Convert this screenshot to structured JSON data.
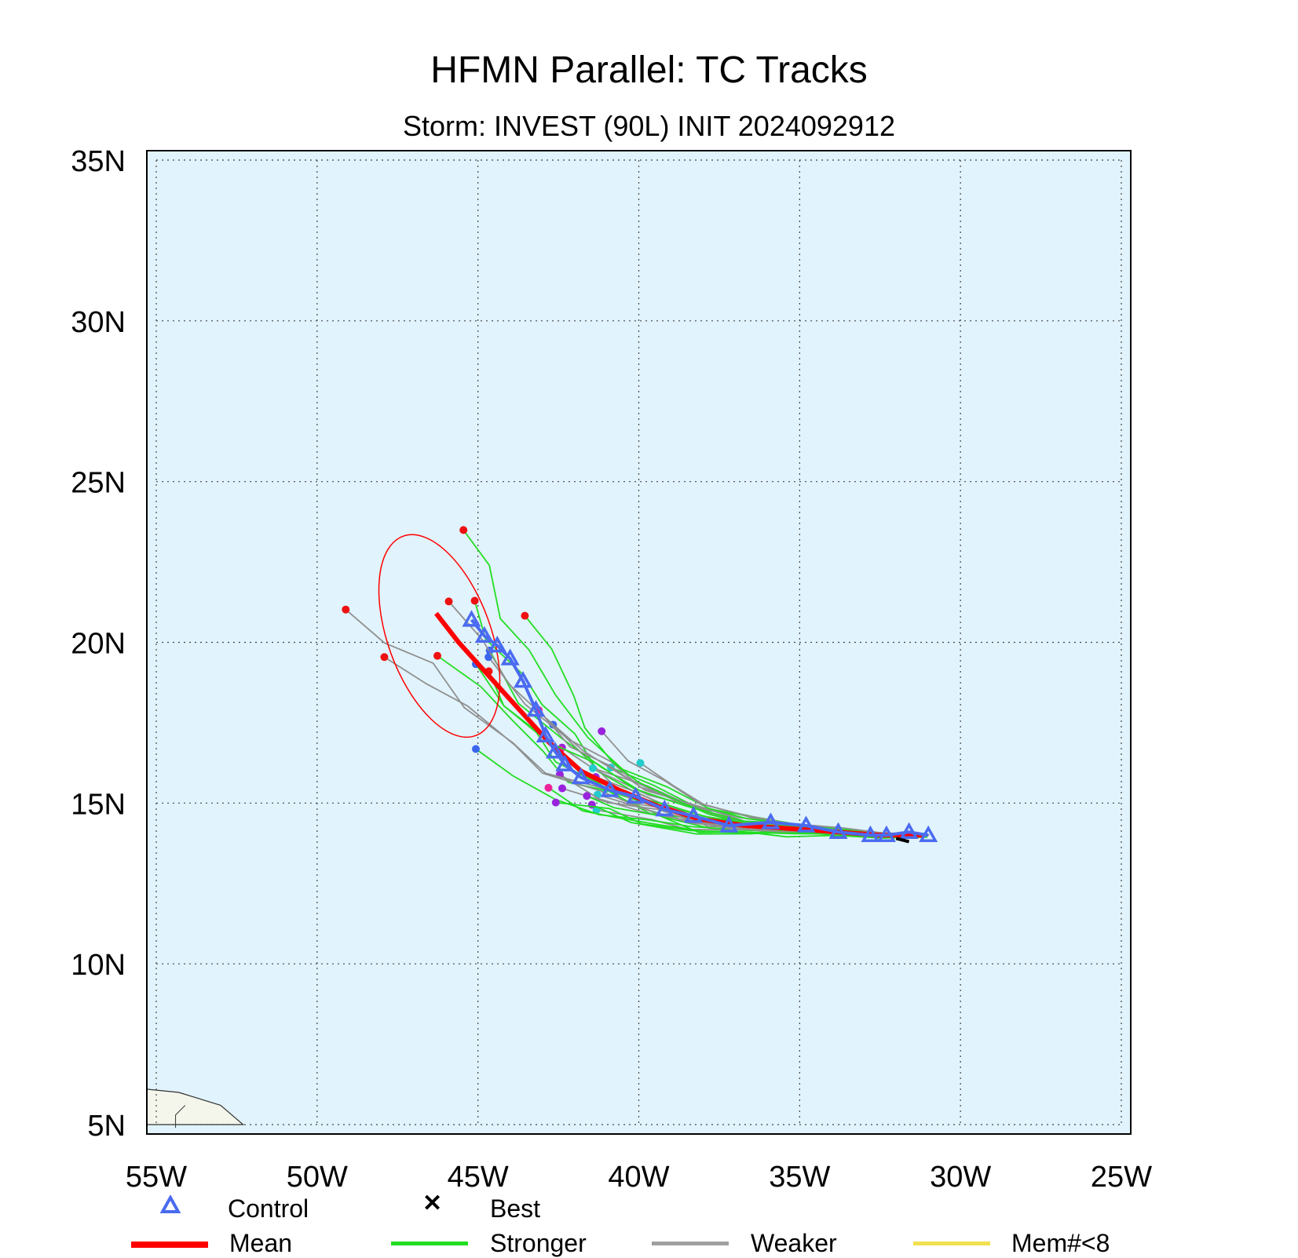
{
  "title": "HFMN Parallel: TC Tracks",
  "subtitle": "Storm: INVEST (90L) INIT 2024092912",
  "colors": {
    "ocean": "#e1f3fc",
    "land": "#f4f6ec",
    "mean": "#ff0000",
    "control": "#4a6bf0",
    "stronger": "#22dd22",
    "weaker": "#909090",
    "small_member": "#f0e050",
    "best": "#000000"
  },
  "legend": {
    "control": "Control",
    "best": "Best",
    "mean": "Mean",
    "stronger": "Stronger",
    "weaker": "Weaker",
    "small": "Mem#<8"
  },
  "chart_data": {
    "type": "map-tracks",
    "x_ticks": [
      "55W",
      "50W",
      "45W",
      "40W",
      "35W",
      "30W",
      "25W"
    ],
    "y_ticks": [
      "5N",
      "10N",
      "15N",
      "20N",
      "25N",
      "30N",
      "35N"
    ],
    "lon_range": [
      -55,
      -25
    ],
    "lat_range": [
      5,
      35
    ],
    "grid": true,
    "legend_position": "bottom",
    "mean_track": {
      "lon": [
        -31.2,
        -32.5,
        -33.8,
        -35.2,
        -36.7,
        -38.1,
        -39.4,
        -40.6,
        -41.8,
        -42.8,
        -43.8,
        -44.7,
        -45.6,
        -46.3
      ],
      "lat": [
        14.0,
        14.0,
        14.1,
        14.2,
        14.3,
        14.5,
        14.9,
        15.4,
        16.0,
        16.9,
        18.0,
        19.0,
        20.0,
        20.9
      ]
    },
    "control_track": {
      "lon": [
        -31.0,
        -31.6,
        -32.3,
        -32.8,
        -33.8,
        -34.8,
        -35.9,
        -37.2,
        -38.3,
        -39.2,
        -40.1,
        -40.9,
        -41.8,
        -42.3,
        -42.6,
        -42.9,
        -43.2,
        -43.6,
        -44.0,
        -44.4,
        -44.8,
        -45.2
      ],
      "lat": [
        14.0,
        14.1,
        14.0,
        14.0,
        14.1,
        14.3,
        14.4,
        14.3,
        14.6,
        14.8,
        15.2,
        15.4,
        15.8,
        16.2,
        16.6,
        17.1,
        17.9,
        18.8,
        19.5,
        19.9,
        20.2,
        20.7
      ]
    },
    "best_track": {
      "lon": [
        -32.0,
        -31.6
      ],
      "lat": [
        13.9,
        13.8
      ]
    },
    "uncertainty_ellipse": {
      "center_lon": -46.2,
      "center_lat": 20.2,
      "radius_lon": 1.6,
      "radius_lat": 3.3,
      "rotation_deg": -20
    }
  }
}
